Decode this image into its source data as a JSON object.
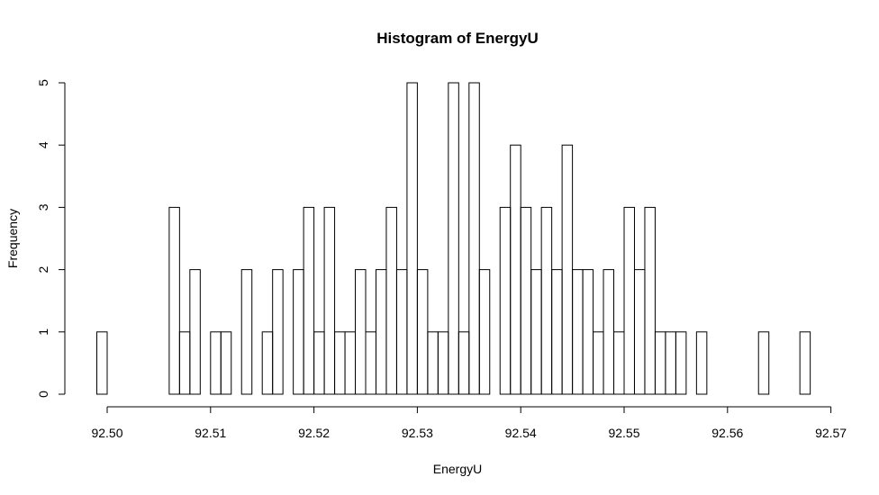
{
  "chart_data": {
    "type": "bar",
    "title": "Histogram of EnergyU",
    "xlabel": "EnergyU",
    "ylabel": "Frequency",
    "bin_start": 92.499,
    "bin_width": 0.001,
    "values": [
      1,
      0,
      0,
      0,
      0,
      0,
      0,
      3,
      1,
      2,
      0,
      1,
      1,
      0,
      2,
      0,
      1,
      2,
      0,
      2,
      3,
      1,
      3,
      1,
      1,
      2,
      1,
      2,
      3,
      2,
      5,
      2,
      1,
      1,
      5,
      1,
      5,
      2,
      0,
      3,
      4,
      3,
      2,
      3,
      2,
      4,
      2,
      2,
      1,
      2,
      1,
      3,
      2,
      3,
      1,
      1,
      1,
      0,
      1,
      0,
      0,
      0,
      0,
      0,
      1,
      0,
      0,
      0,
      1
    ],
    "xlim": [
      92.5,
      92.57
    ],
    "ylim": [
      0,
      5
    ],
    "xticks": [
      "92.50",
      "92.51",
      "92.52",
      "92.53",
      "92.54",
      "92.55",
      "92.56",
      "92.57"
    ],
    "yticks": [
      "0",
      "1",
      "2",
      "3",
      "4",
      "5"
    ],
    "grid": false,
    "legend": "none"
  }
}
